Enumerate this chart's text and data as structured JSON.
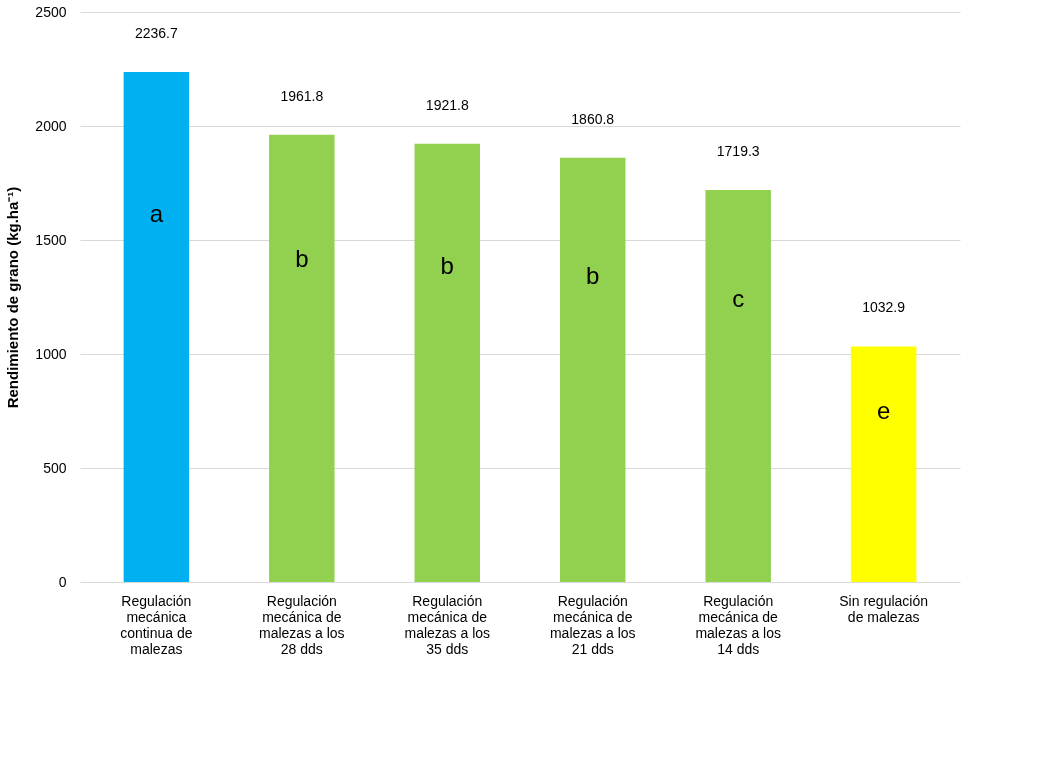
{
  "chart_data": {
    "type": "bar",
    "ylabel": "Rendimiento de grano (kg.ha⁻¹)",
    "categories": [
      "Regulación mecánica continua de malezas",
      "Regulación mecánica de malezas a los 28 dds",
      "Regulación mecánica de malezas a los 35 dds",
      "Regulación mecánica de malezas a los 21 dds",
      "Regulación mecánica de malezas a los 14 dds",
      "Sin regulación de malezas"
    ],
    "values": [
      2236.7,
      1961.8,
      1921.8,
      1860.8,
      1719.3,
      1032.9
    ],
    "colors": [
      "#00b0f0",
      "#92d050",
      "#92d050",
      "#92d050",
      "#92d050",
      "#ffff00"
    ],
    "data_labels": true,
    "annotations": [
      "a",
      "b",
      "b",
      "b",
      "c",
      "e"
    ],
    "ylim": [
      0,
      2500
    ],
    "yticks": [
      0,
      500,
      1000,
      1500,
      2000,
      2500
    ],
    "grid": "y"
  }
}
